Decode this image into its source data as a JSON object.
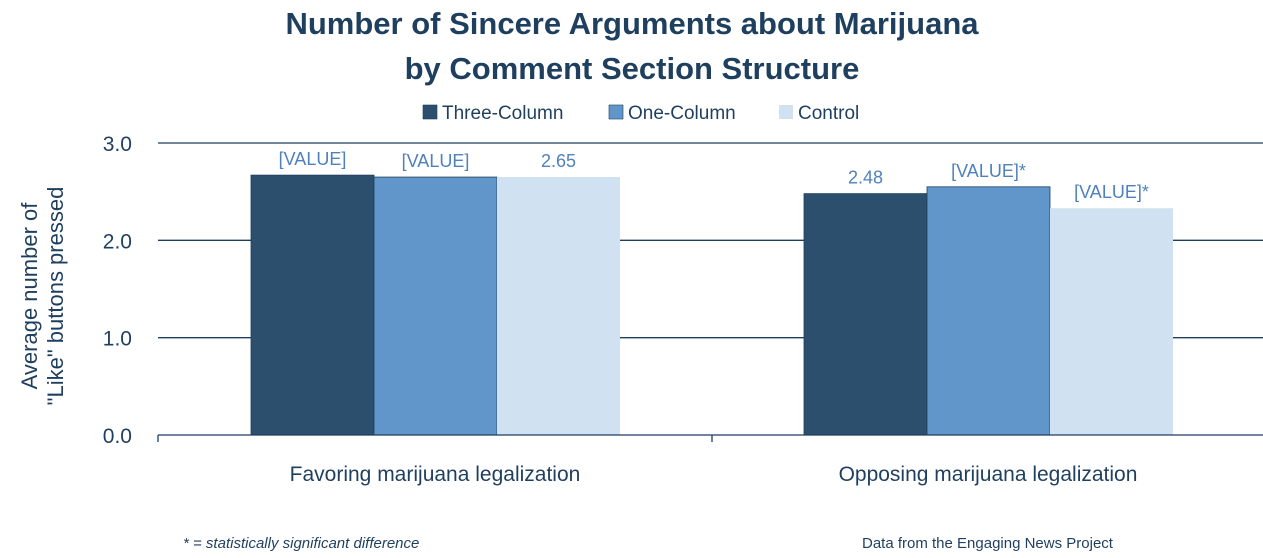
{
  "chart_data": {
    "type": "bar",
    "title_lines": [
      "Number of Sincere Arguments about Marijuana",
      "by Comment Section Structure"
    ],
    "ylabel_lines": [
      "Average number of",
      "\"Like\" buttons pressed"
    ],
    "xlabel": "",
    "ylim": [
      0,
      3
    ],
    "yticks": [
      "0.0",
      "1.0",
      "2.0",
      "3.0"
    ],
    "grid": true,
    "legend_position": "top-center",
    "categories": [
      "Favoring marijuana legalization",
      "Opposing marijuana legalization"
    ],
    "series": [
      {
        "name": "Three-Column",
        "color": "#2c4f6e",
        "values": [
          2.67,
          2.48
        ],
        "labels": [
          "[VALUE]",
          "2.48"
        ]
      },
      {
        "name": "One-Column",
        "color": "#6096c9",
        "values": [
          2.65,
          2.55
        ],
        "labels": [
          "[VALUE]",
          "[VALUE]*"
        ]
      },
      {
        "name": "Control",
        "color": "#d0e1f2",
        "values": [
          2.65,
          2.33
        ],
        "labels": [
          "2.65",
          "[VALUE]*"
        ]
      }
    ]
  },
  "footnotes": {
    "left": "* = statistically significant difference",
    "right": "Data from the Engaging News Project"
  }
}
